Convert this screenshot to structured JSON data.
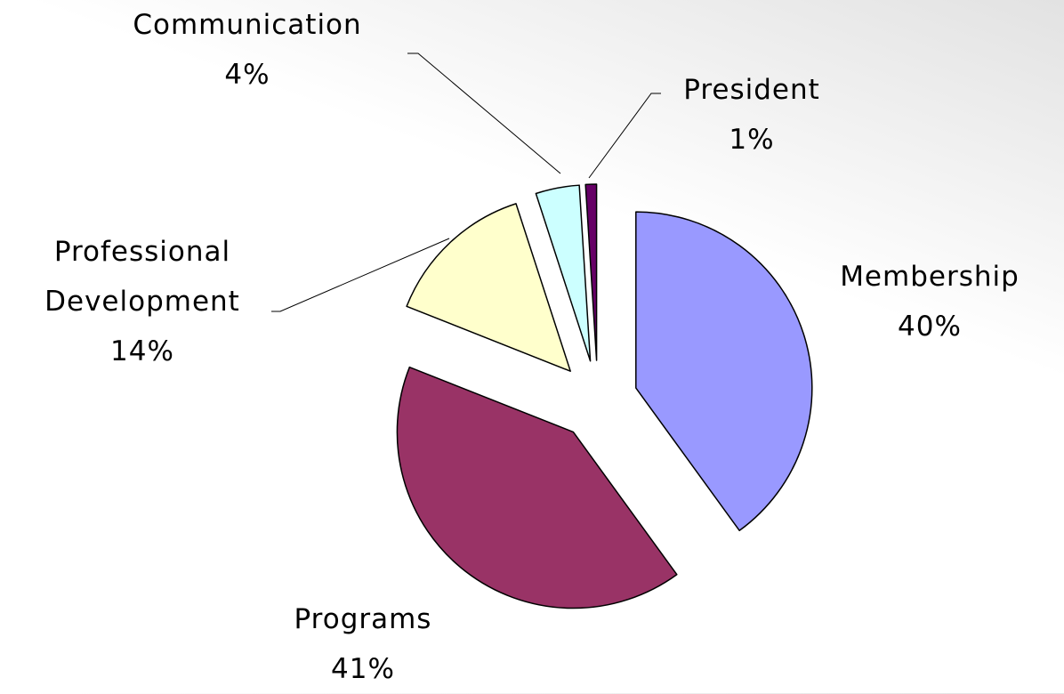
{
  "chart_data": {
    "type": "pie",
    "categories": [
      "Membership",
      "Programs",
      "Professional Development",
      "Communication",
      "President"
    ],
    "values": [
      40,
      41,
      14,
      4,
      1
    ],
    "value_labels": [
      "40%",
      "41%",
      "14%",
      "4%",
      "1%"
    ],
    "colors": [
      "#9999ff",
      "#993366",
      "#ffffcc",
      "#ccffff",
      "#660066"
    ]
  }
}
